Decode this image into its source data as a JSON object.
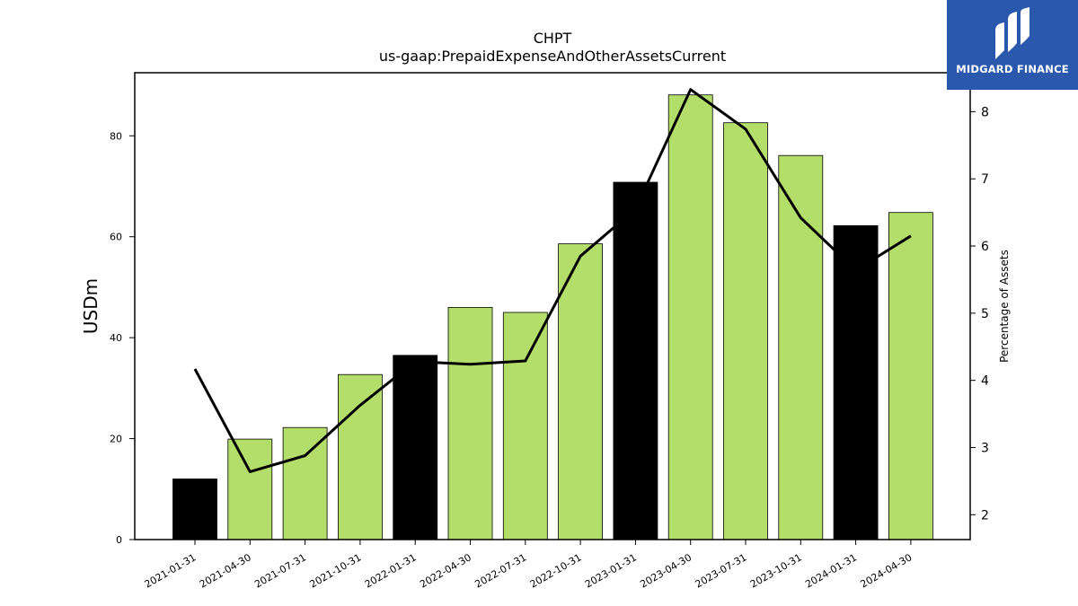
{
  "chart_data": {
    "type": "bar",
    "title": "CHPT",
    "subtitle": "us-gaap:PrepaidExpenseAndOtherAssetsCurrent",
    "ylabel": "USDm",
    "y2label": "Percentage of Assets",
    "categories": [
      "2021-01-31",
      "2021-04-30",
      "2021-07-31",
      "2021-10-31",
      "2022-01-31",
      "2022-04-30",
      "2022-07-31",
      "2022-10-31",
      "2023-01-31",
      "2023-04-30",
      "2023-07-31",
      "2023-10-31",
      "2024-01-31",
      "2024-04-30"
    ],
    "ylim": [
      0,
      92.5
    ],
    "y2lim": [
      1.63,
      8.58
    ],
    "yticks": [
      0,
      20,
      40,
      60,
      80
    ],
    "y2ticks": [
      2,
      3,
      4,
      5,
      6,
      7,
      8
    ],
    "series": [
      {
        "type": "bar",
        "values": [
          12.0,
          19.9,
          22.2,
          32.7,
          36.5,
          46.0,
          45.0,
          58.6,
          70.8,
          88.1,
          82.6,
          76.1,
          62.2,
          64.8
        ],
        "colors": [
          "#000000",
          "#b3de69",
          "#b3de69",
          "#b3de69",
          "#000000",
          "#b3de69",
          "#b3de69",
          "#b3de69",
          "#000000",
          "#b3de69",
          "#b3de69",
          "#b3de69",
          "#000000",
          "#b3de69"
        ]
      },
      {
        "type": "line",
        "axis": "right",
        "values": [
          4.17,
          2.64,
          2.88,
          3.63,
          4.28,
          4.24,
          4.29,
          5.85,
          6.55,
          8.33,
          7.74,
          6.42,
          5.64,
          6.15
        ],
        "color": "#000000"
      }
    ]
  },
  "logo": {
    "text": "MIDGARD FINANCE",
    "bg": "#2a58ad"
  }
}
